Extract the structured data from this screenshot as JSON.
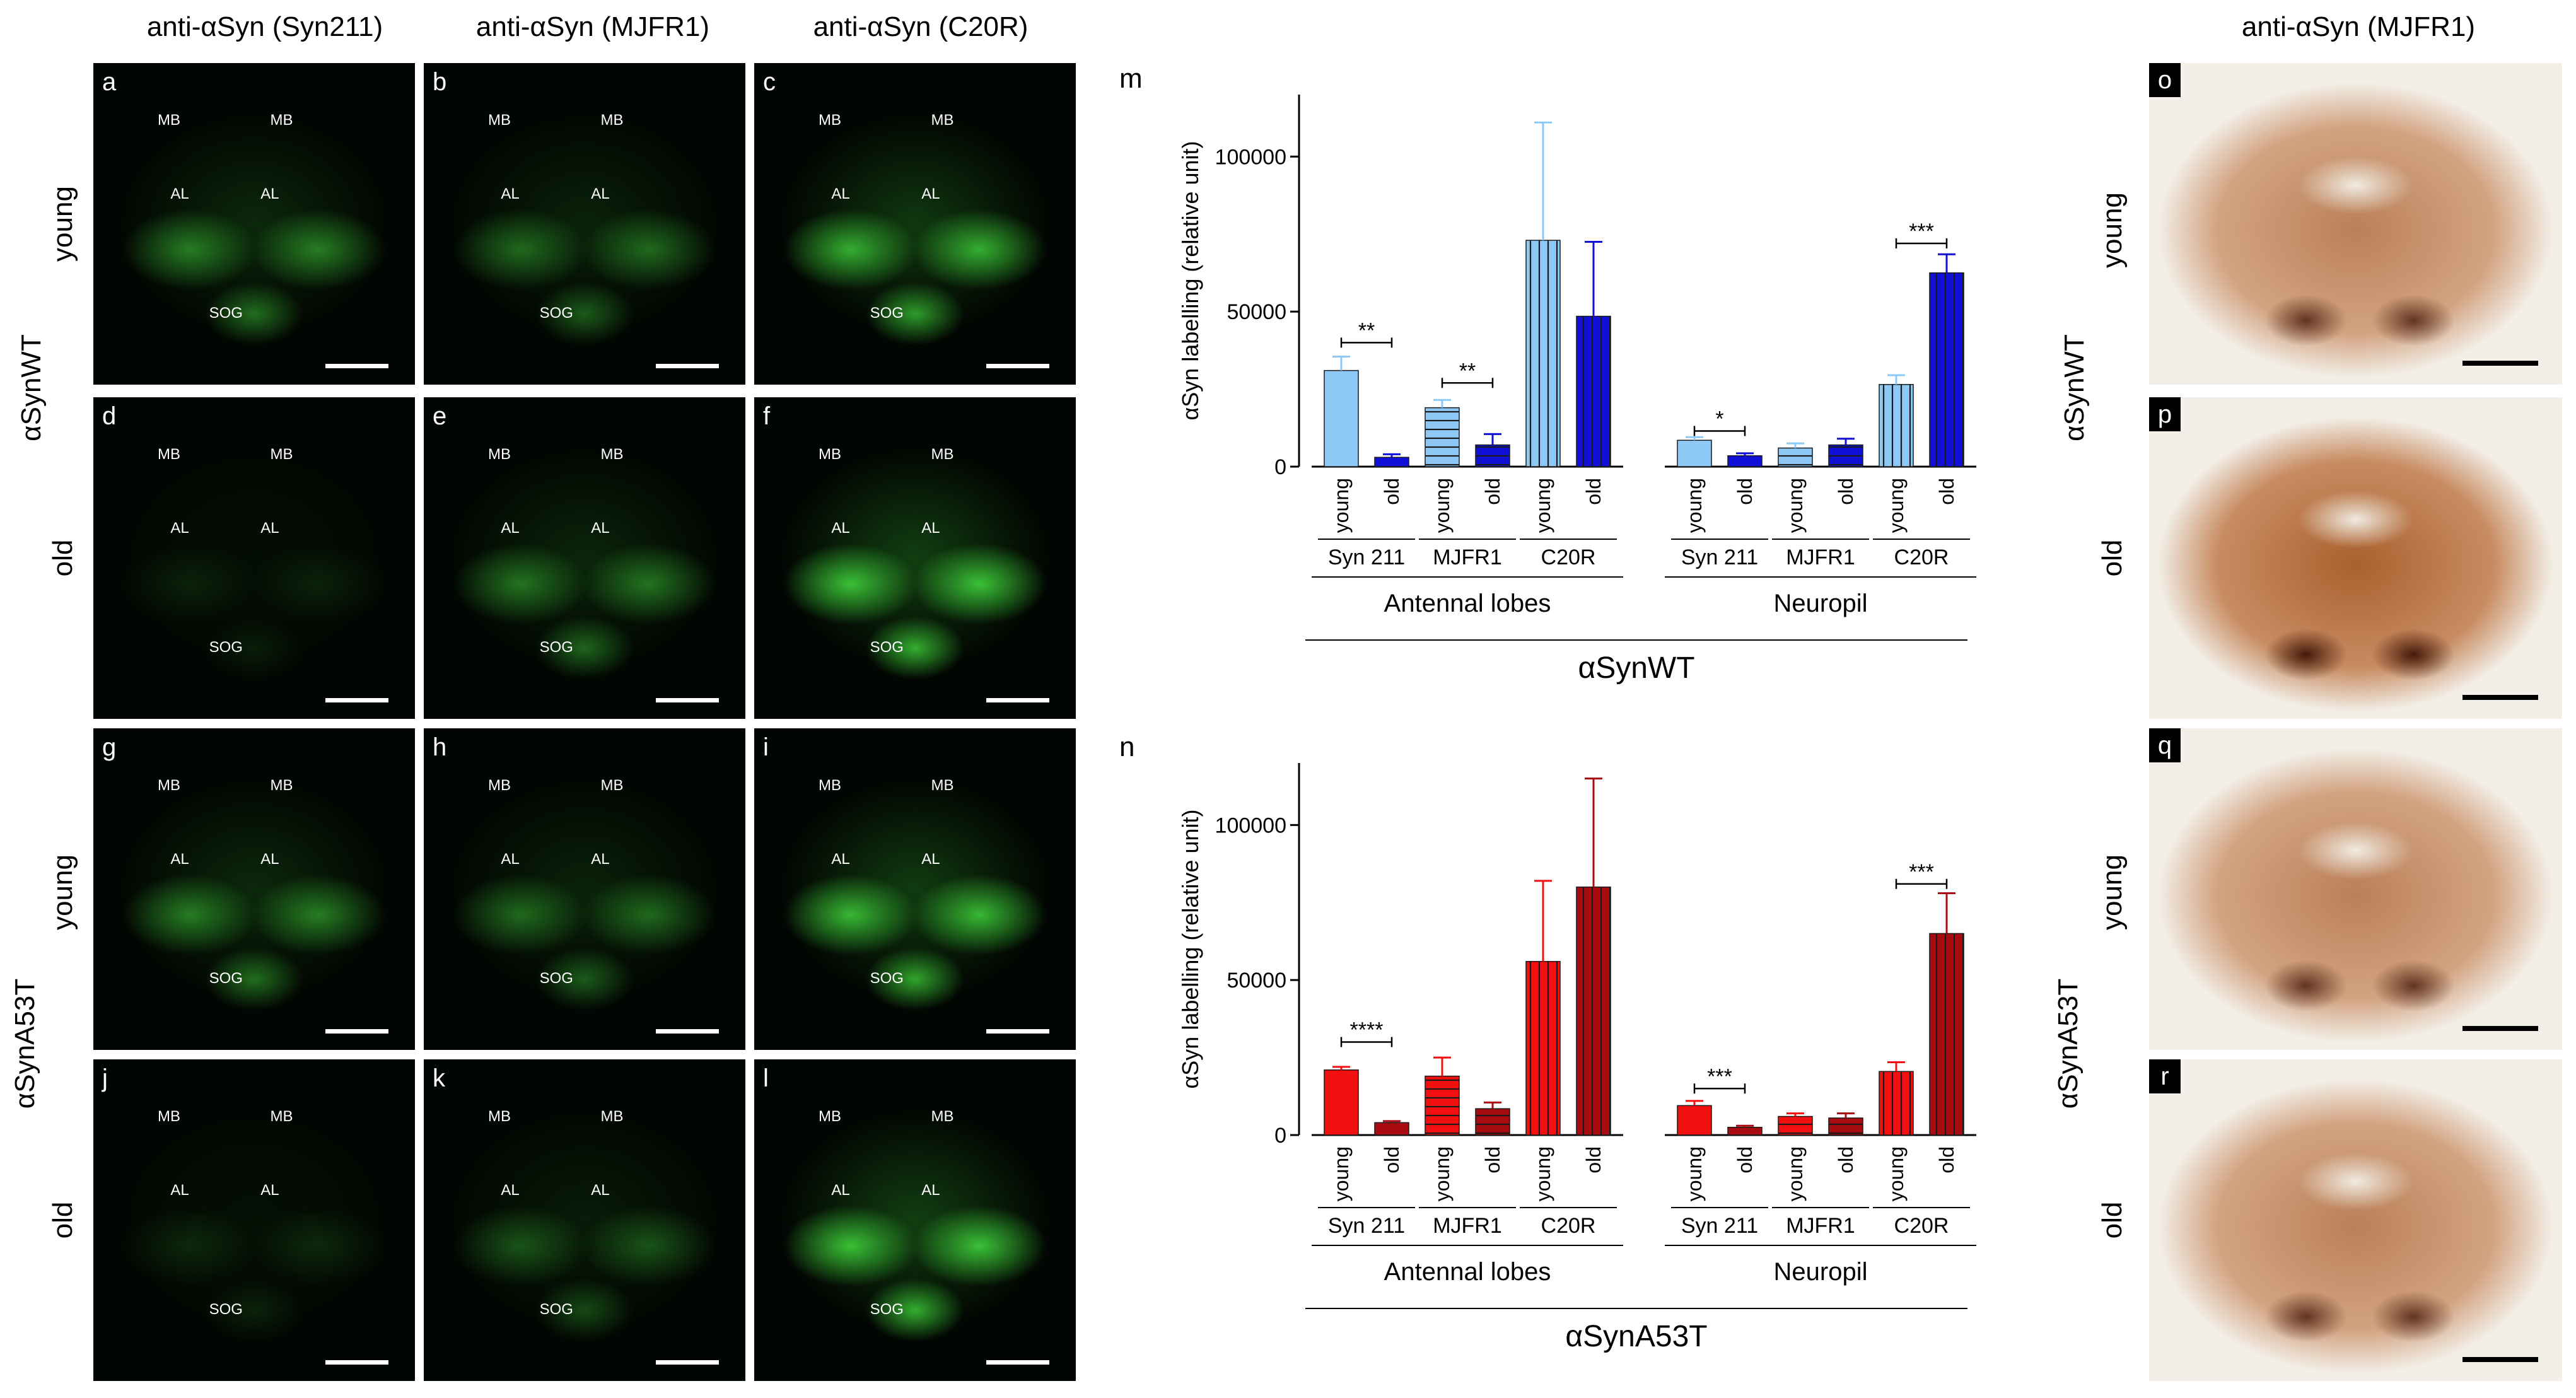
{
  "column_titles": [
    "anti-αSyn (Syn211)",
    "anti-αSyn (MJFR1)",
    "anti-αSyn (C20R)"
  ],
  "ihc_title": "anti-αSyn (MJFR1)",
  "row_labels": {
    "young": "young",
    "old": "old",
    "wt": "αSynWT",
    "a53t": "αSynA53T"
  },
  "panels": [
    {
      "letter": "a",
      "labels": [
        "MB",
        "MB",
        "AL",
        "AL",
        "SOG"
      ]
    },
    {
      "letter": "b",
      "labels": [
        "MB",
        "MB",
        "AL",
        "AL",
        "SOG"
      ]
    },
    {
      "letter": "c",
      "labels": [
        "MB",
        "MB",
        "AL",
        "AL",
        "SOG"
      ]
    },
    {
      "letter": "d",
      "labels": [
        "MB",
        "MB",
        "AL",
        "AL",
        "SOG"
      ]
    },
    {
      "letter": "e",
      "labels": [
        "MB",
        "MB",
        "AL",
        "AL",
        "SOG"
      ]
    },
    {
      "letter": "f",
      "labels": [
        "MB",
        "MB",
        "AL",
        "AL",
        "SOG"
      ]
    },
    {
      "letter": "g",
      "labels": [
        "MB",
        "MB",
        "AL",
        "AL",
        "SOG"
      ]
    },
    {
      "letter": "h",
      "labels": [
        "MB",
        "MB",
        "AL",
        "AL",
        "SOG"
      ]
    },
    {
      "letter": "i",
      "labels": [
        "MB",
        "MB",
        "AL",
        "AL",
        "SOG"
      ]
    },
    {
      "letter": "j",
      "labels": [
        "MB",
        "MB",
        "AL",
        "AL",
        "SOG"
      ]
    },
    {
      "letter": "k",
      "labels": [
        "MB",
        "MB",
        "AL",
        "AL",
        "SOG"
      ]
    },
    {
      "letter": "l",
      "labels": [
        "MB",
        "MB",
        "AL",
        "AL",
        "SOG"
      ]
    }
  ],
  "ihc_panels": [
    {
      "letter": "o"
    },
    {
      "letter": "p"
    },
    {
      "letter": "q"
    },
    {
      "letter": "r"
    }
  ],
  "colors": {
    "fluor_green": "#3fd23a",
    "wt_young": "#8ec9f5",
    "wt_old": "#1010d6",
    "a53t_young": "#f20f0f",
    "a53t_old": "#a80b10",
    "ihc_brown": "#a9602e"
  },
  "chart_data": [
    {
      "type": "bar",
      "panel_letter": "m",
      "ylabel": "αSyn labelling (relative unit)",
      "ylim": [
        0,
        120000
      ],
      "yticks": [
        0,
        50000,
        100000
      ],
      "ytick_labels": [
        "0",
        "50000",
        "100000"
      ],
      "categories": [
        "young",
        "old",
        "young",
        "old",
        "young",
        "old",
        "young",
        "old",
        "young",
        "old",
        "young",
        "old"
      ],
      "values": [
        31000,
        3000,
        19000,
        7000,
        73000,
        48500,
        8500,
        3500,
        6000,
        7000,
        26500,
        62500
      ],
      "errors": [
        4500,
        1000,
        2500,
        3500,
        38000,
        24000,
        1000,
        800,
        1500,
        2000,
        3000,
        6000
      ],
      "patterns": [
        "solid",
        "solid",
        "hstripe",
        "hstripe",
        "vstripe",
        "vstripe",
        "solid",
        "solid",
        "hstripe",
        "hstripe",
        "vstripe",
        "vstripe"
      ],
      "antibody_groups": [
        {
          "label": "Syn 211",
          "start": 0,
          "end": 1
        },
        {
          "label": "MJFR1",
          "start": 2,
          "end": 3
        },
        {
          "label": "C20R",
          "start": 4,
          "end": 5
        },
        {
          "label": "Syn 211",
          "start": 6,
          "end": 7
        },
        {
          "label": "MJFR1",
          "start": 8,
          "end": 9
        },
        {
          "label": "C20R",
          "start": 10,
          "end": 11
        }
      ],
      "region_groups": [
        {
          "label": "Antennal lobes",
          "start": 0,
          "end": 5
        },
        {
          "label": "Neuropil",
          "start": 6,
          "end": 11
        }
      ],
      "genotype_label": "αSynWT",
      "significance": [
        {
          "from": 0,
          "to": 1,
          "label": "**",
          "y": 40000
        },
        {
          "from": 2,
          "to": 3,
          "label": "**",
          "y": 27000
        },
        {
          "from": 6,
          "to": 7,
          "label": "*",
          "y": 11500
        },
        {
          "from": 10,
          "to": 11,
          "label": "***",
          "y": 72000
        }
      ]
    },
    {
      "type": "bar",
      "panel_letter": "n",
      "ylabel": "αSyn labelling (relative unit)",
      "ylim": [
        0,
        120000
      ],
      "yticks": [
        0,
        50000,
        100000
      ],
      "ytick_labels": [
        "0",
        "50000",
        "100000"
      ],
      "categories": [
        "young",
        "old",
        "young",
        "old",
        "young",
        "old",
        "young",
        "old",
        "young",
        "old",
        "young",
        "old"
      ],
      "values": [
        21000,
        4000,
        19000,
        8500,
        56000,
        80000,
        9500,
        2500,
        6000,
        5500,
        20500,
        65000
      ],
      "errors": [
        1000,
        500,
        6000,
        2000,
        26000,
        35000,
        1500,
        500,
        1000,
        1500,
        3000,
        13000
      ],
      "patterns": [
        "solid",
        "solid",
        "hstripe",
        "hstripe",
        "vstripe",
        "vstripe",
        "solid",
        "solid",
        "hstripe",
        "hstripe",
        "vstripe",
        "vstripe"
      ],
      "antibody_groups": [
        {
          "label": "Syn 211",
          "start": 0,
          "end": 1
        },
        {
          "label": "MJFR1",
          "start": 2,
          "end": 3
        },
        {
          "label": "C20R",
          "start": 4,
          "end": 5
        },
        {
          "label": "Syn 211",
          "start": 6,
          "end": 7
        },
        {
          "label": "MJFR1",
          "start": 8,
          "end": 9
        },
        {
          "label": "C20R",
          "start": 10,
          "end": 11
        }
      ],
      "region_groups": [
        {
          "label": "Antennal lobes",
          "start": 0,
          "end": 5
        },
        {
          "label": "Neuropil",
          "start": 6,
          "end": 11
        }
      ],
      "genotype_label": "αSynA53T",
      "significance": [
        {
          "from": 0,
          "to": 1,
          "label": "****",
          "y": 30000
        },
        {
          "from": 6,
          "to": 7,
          "label": "***",
          "y": 15000
        },
        {
          "from": 10,
          "to": 11,
          "label": "***",
          "y": 81000
        }
      ]
    }
  ]
}
